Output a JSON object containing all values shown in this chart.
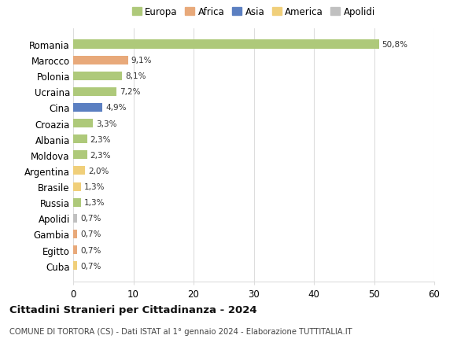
{
  "categories": [
    "Romania",
    "Marocco",
    "Polonia",
    "Ucraina",
    "Cina",
    "Croazia",
    "Albania",
    "Moldova",
    "Argentina",
    "Brasile",
    "Russia",
    "Apolidi",
    "Gambia",
    "Egitto",
    "Cuba"
  ],
  "values": [
    50.8,
    9.1,
    8.1,
    7.2,
    4.9,
    3.3,
    2.3,
    2.3,
    2.0,
    1.3,
    1.3,
    0.7,
    0.7,
    0.7,
    0.7
  ],
  "labels": [
    "50,8%",
    "9,1%",
    "8,1%",
    "7,2%",
    "4,9%",
    "3,3%",
    "2,3%",
    "2,3%",
    "2,0%",
    "1,3%",
    "1,3%",
    "0,7%",
    "0,7%",
    "0,7%",
    "0,7%"
  ],
  "colors": [
    "#aec97a",
    "#e8a97a",
    "#aec97a",
    "#aec97a",
    "#5b7fc1",
    "#aec97a",
    "#aec97a",
    "#aec97a",
    "#f0cf7a",
    "#f0cf7a",
    "#aec97a",
    "#c0c0c0",
    "#e8a97a",
    "#e8a97a",
    "#f0cf7a"
  ],
  "legend": [
    {
      "label": "Europa",
      "color": "#aec97a"
    },
    {
      "label": "Africa",
      "color": "#e8a97a"
    },
    {
      "label": "Asia",
      "color": "#5b7fc1"
    },
    {
      "label": "America",
      "color": "#f0cf7a"
    },
    {
      "label": "Apolidi",
      "color": "#c0c0c0"
    }
  ],
  "xlim": [
    0,
    60
  ],
  "xticks": [
    0,
    10,
    20,
    30,
    40,
    50,
    60
  ],
  "title": "Cittadini Stranieri per Cittadinanza - 2024",
  "subtitle": "COMUNE DI TORTORA (CS) - Dati ISTAT al 1° gennaio 2024 - Elaborazione TUTTITALIA.IT",
  "background_color": "#ffffff",
  "grid_color": "#dddddd",
  "bar_height": 0.55
}
